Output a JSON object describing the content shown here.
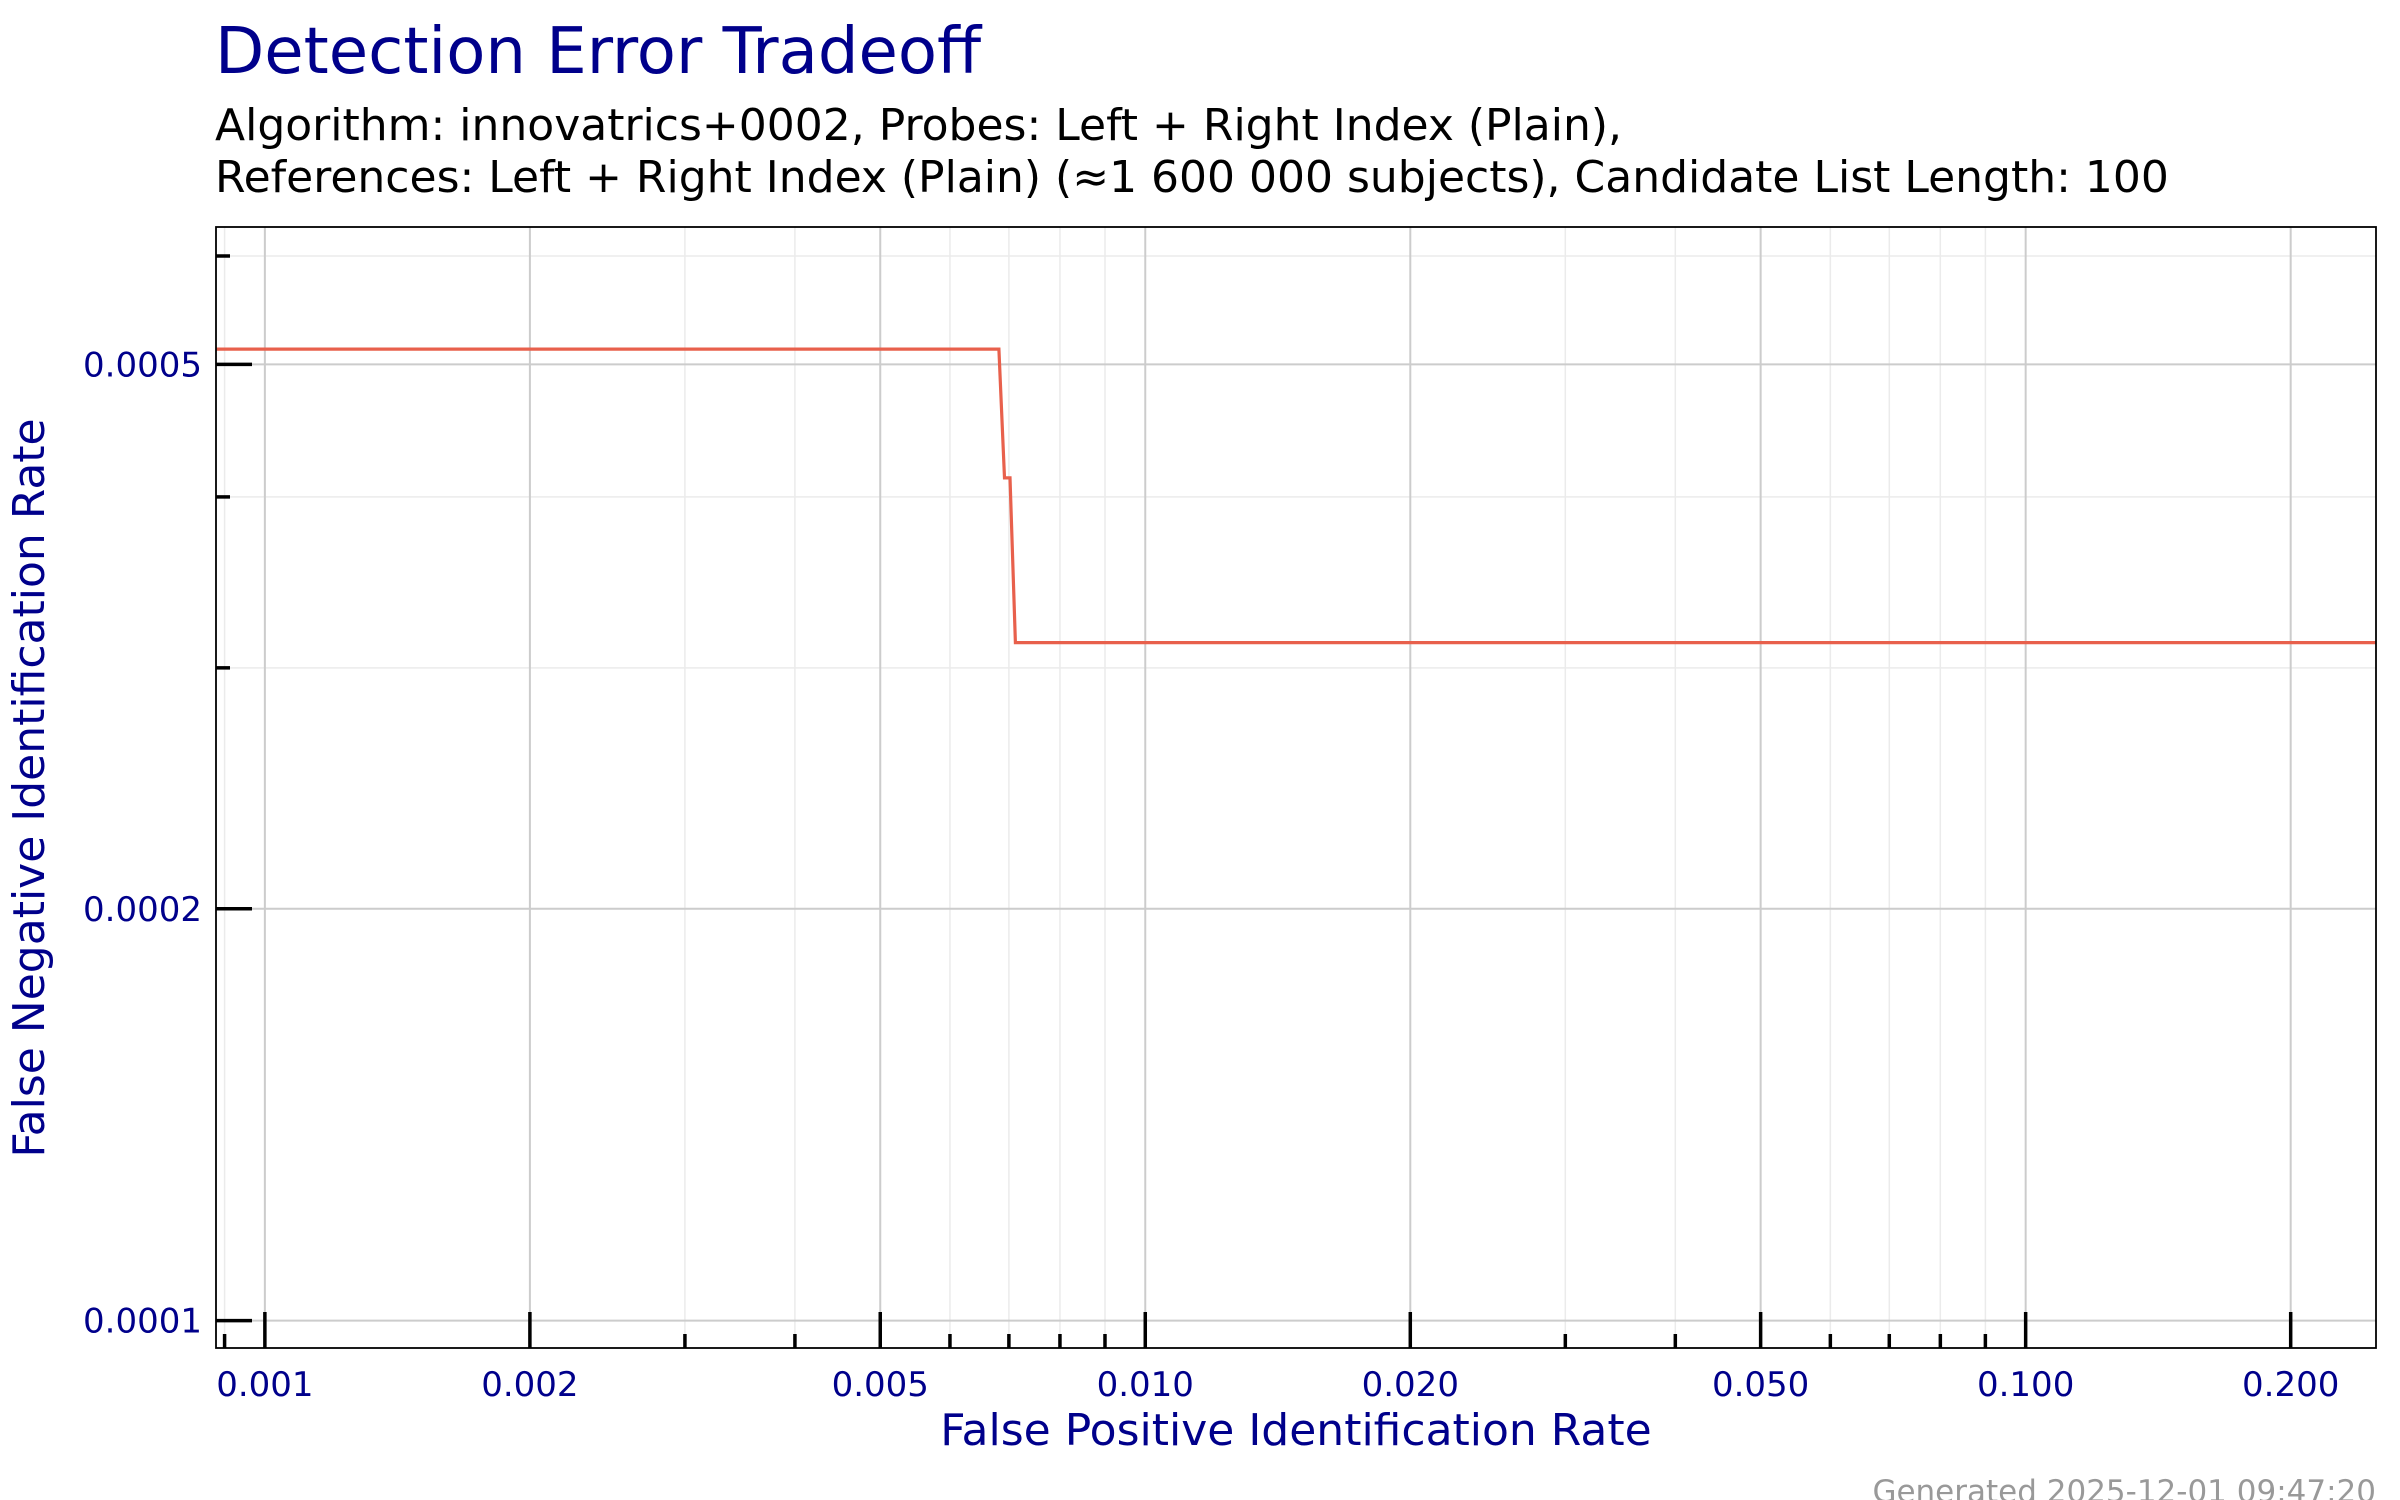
{
  "chart_data": {
    "type": "line",
    "title": "Detection Error Tradeoff",
    "subtitle_lines": [
      "Algorithm: innovatrics+0002, Probes: Left + Right Index (Plain),",
      "References: Left + Right Index (Plain) (≈1 600 000 subjects), Candidate List Length: 100"
    ],
    "xlabel": "False Positive Identification Rate",
    "ylabel": "False Negative Identification Rate",
    "xscale": "log",
    "yscale": "log",
    "xlim": [
      0.00088,
      0.25
    ],
    "ylim": [
      9.55e-05,
      0.00063
    ],
    "x_ticks": [
      {
        "value": 0.001,
        "label": "0.001"
      },
      {
        "value": 0.002,
        "label": "0.002"
      },
      {
        "value": 0.005,
        "label": "0.005"
      },
      {
        "value": 0.01,
        "label": "0.010"
      },
      {
        "value": 0.02,
        "label": "0.020"
      },
      {
        "value": 0.05,
        "label": "0.050"
      },
      {
        "value": 0.1,
        "label": "0.100"
      },
      {
        "value": 0.2,
        "label": "0.200"
      }
    ],
    "x_minor_ticks": [
      0.0009,
      0.003,
      0.004,
      0.006,
      0.007,
      0.008,
      0.009,
      0.03,
      0.04,
      0.06,
      0.07,
      0.08,
      0.09
    ],
    "y_ticks": [
      {
        "value": 0.0001,
        "label": "0.0001"
      },
      {
        "value": 0.0002,
        "label": "0.0002"
      },
      {
        "value": 0.0005,
        "label": "0.0005"
      }
    ],
    "y_minor_ticks": [
      0.0003,
      0.0004,
      0.0006
    ],
    "grid": true,
    "series": [
      {
        "color": "#e8604c",
        "points": [
          [
            0.00088,
            0.000513
          ],
          [
            0.00682,
            0.000513
          ],
          [
            0.00692,
            0.000413
          ],
          [
            0.00702,
            0.000413
          ],
          [
            0.00712,
            0.000313
          ],
          [
            0.25,
            0.000313
          ]
        ]
      }
    ]
  },
  "footer": {
    "generated": "Generated 2025-12-01 09:47:20"
  },
  "colors": {
    "title": "#00008b",
    "axis_label": "#00008b",
    "tick_label": "#00008b",
    "subtitle": "#000000",
    "grid_major": "#cccccc",
    "grid_minor": "#ebebeb",
    "footer": "#999999"
  }
}
